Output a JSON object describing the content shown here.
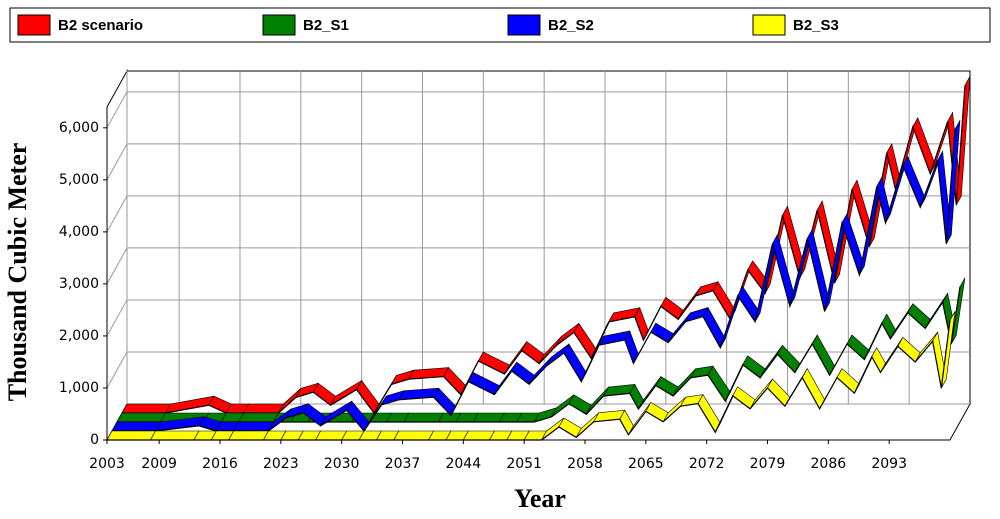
{
  "chart_data": {
    "type": "ribbon3d",
    "x_label": "Year",
    "y_label": "Thousand Cubic Meter",
    "x": [
      2003,
      2008,
      2013,
      2015,
      2017,
      2021,
      2023,
      2025,
      2027,
      2030,
      2032,
      2034,
      2036,
      2040,
      2042,
      2044,
      2047,
      2049,
      2051,
      2053,
      2055,
      2057,
      2059,
      2062,
      2063,
      2065,
      2067,
      2069,
      2071,
      2073,
      2075,
      2077,
      2079,
      2081,
      2083,
      2085,
      2087,
      2089,
      2091,
      2092,
      2094,
      2096,
      2098,
      2099,
      2100
    ],
    "series": [
      {
        "name": "B2 scenario",
        "color": "#ff0000",
        "values": [
          0,
          0,
          150,
          0,
          0,
          0,
          300,
          400,
          150,
          450,
          0,
          550,
          650,
          700,
          350,
          1000,
          750,
          1200,
          950,
          1300,
          1550,
          1050,
          1750,
          1850,
          1400,
          2050,
          1800,
          2250,
          2350,
          1800,
          2750,
          2300,
          3800,
          2600,
          3900,
          2500,
          4300,
          3200,
          5000,
          4300,
          5500,
          4600,
          5600,
          4000,
          6300
        ]
      },
      {
        "name": "B2_S1",
        "color": "#008000",
        "values": [
          0,
          0,
          0,
          0,
          0,
          0,
          0,
          0,
          0,
          0,
          0,
          0,
          0,
          0,
          0,
          0,
          0,
          0,
          0,
          100,
          350,
          150,
          500,
          550,
          250,
          700,
          500,
          850,
          900,
          400,
          1100,
          850,
          1300,
          950,
          1500,
          900,
          1500,
          1200,
          1900,
          1600,
          2100,
          1800,
          2300,
          1500,
          2600
        ]
      },
      {
        "name": "B2_S2",
        "color": "#0000ff",
        "values": [
          0,
          0,
          100,
          0,
          0,
          0,
          250,
          350,
          100,
          400,
          0,
          500,
          600,
          650,
          300,
          950,
          700,
          1150,
          900,
          1250,
          1500,
          950,
          1650,
          1750,
          1300,
          1900,
          1700,
          2100,
          2200,
          1600,
          2600,
          2100,
          3600,
          2400,
          3700,
          2300,
          4000,
          3000,
          4700,
          4000,
          5100,
          4300,
          5200,
          3600,
          5800
        ]
      },
      {
        "name": "B2_S3",
        "color": "#ffff00",
        "values": [
          0,
          0,
          0,
          0,
          0,
          0,
          0,
          0,
          0,
          0,
          0,
          0,
          0,
          0,
          0,
          0,
          0,
          0,
          0,
          0,
          250,
          50,
          350,
          400,
          100,
          550,
          350,
          650,
          700,
          150,
          850,
          600,
          1000,
          650,
          1200,
          600,
          1200,
          900,
          1600,
          1300,
          1800,
          1500,
          1900,
          1000,
          2300
        ]
      }
    ],
    "xlim": [
      2003,
      2100
    ],
    "ylim": [
      0,
      6400
    ],
    "xticks": [
      2003,
      2009,
      2016,
      2023,
      2030,
      2037,
      2044,
      2051,
      2058,
      2065,
      2072,
      2079,
      2086,
      2093
    ],
    "yticks": [
      0,
      {
        "value": 1000,
        "label": "1,000"
      },
      {
        "value": 2000,
        "label": "2,000"
      },
      {
        "value": 3000,
        "label": "3,000"
      },
      {
        "value": 4000,
        "label": "4,000"
      },
      {
        "value": 5000,
        "label": "5,000"
      },
      {
        "value": 6000,
        "label": "6,000"
      }
    ],
    "grid": true
  }
}
